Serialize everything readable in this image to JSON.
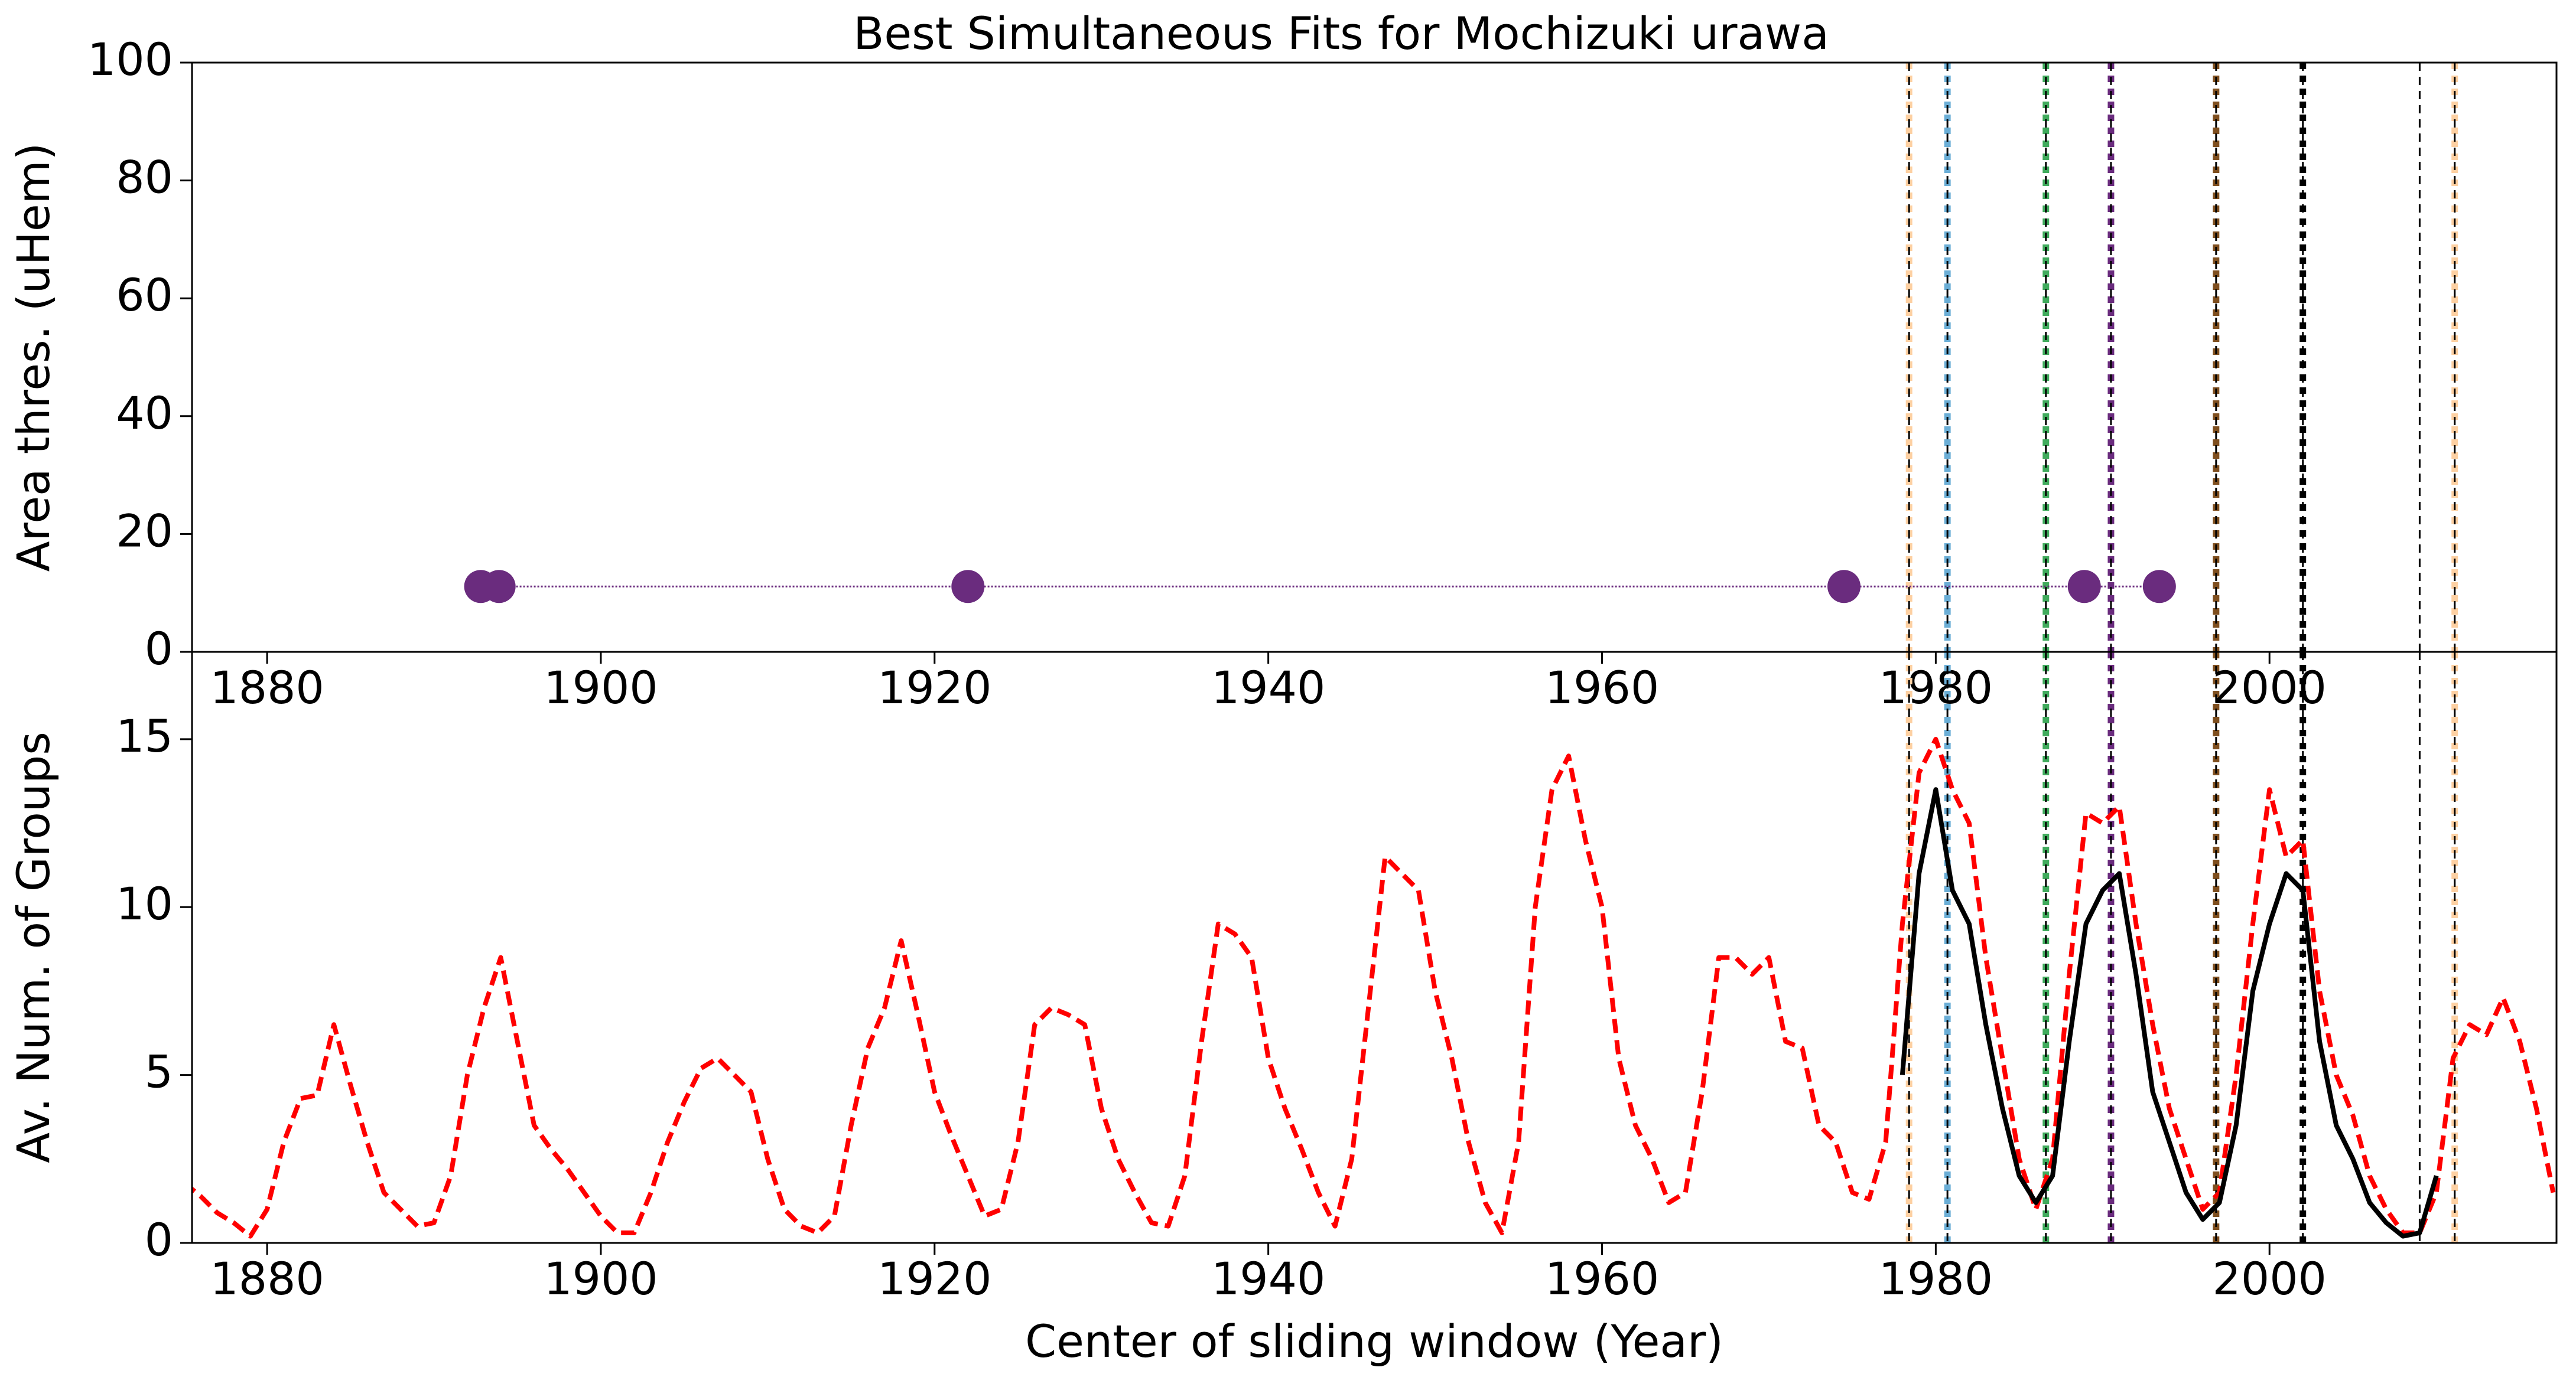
{
  "chart_data": [
    {
      "type": "scatter",
      "title": "Best Simultaneous Fits for Mochizuki urawa",
      "ylabel": "Area thres. (uHem)",
      "x": [
        1892.8,
        1893.9,
        1922.0,
        1974.5,
        1988.9,
        1993.4
      ],
      "values": [
        11.1,
        11.1,
        11.1,
        11.1,
        11.1,
        11.1
      ],
      "color": "#6a2c7e",
      "xlim": [
        1875.5,
        2017.2
      ],
      "ylim": [
        0,
        100
      ],
      "xticks": [
        1880,
        1900,
        1920,
        1940,
        1960,
        1980,
        2000
      ],
      "yticks": [
        0,
        20,
        40,
        60,
        80,
        100
      ],
      "vlines": [
        {
          "x": 1978.4,
          "color": "#fdd0a2"
        },
        {
          "x": 1980.7,
          "color": "#6baed6"
        },
        {
          "x": 1986.6,
          "color": "#41ab5d"
        },
        {
          "x": 1990.5,
          "color": "#6a2c7e"
        },
        {
          "x": 1996.8,
          "color": "#7f4f1f"
        },
        {
          "x": 2002.0,
          "color": "#000000"
        },
        {
          "x": 2009.0,
          "color": "#ffffff"
        },
        {
          "x": 2011.1,
          "color": "#fdd0a2"
        }
      ]
    },
    {
      "type": "line",
      "xlabel": "Center of sliding window (Year)",
      "ylabel": "Av. Num. of Groups",
      "xlim": [
        1875.5,
        2017.2
      ],
      "ylim": [
        0,
        17.6
      ],
      "xticks": [
        1880,
        1900,
        1920,
        1940,
        1960,
        1980,
        2000
      ],
      "yticks": [
        0,
        5,
        10,
        15
      ],
      "series": [
        {
          "color": "#ff0000",
          "dash": true,
          "x": [
            1875,
            1876,
            1877,
            1878,
            1879,
            1880,
            1881,
            1882,
            1883,
            1884,
            1885,
            1886,
            1887,
            1888,
            1889,
            1890,
            1891,
            1892,
            1893,
            1894,
            1895,
            1896,
            1897,
            1898,
            1899,
            1900,
            1901,
            1902,
            1903,
            1904,
            1905,
            1906,
            1907,
            1908,
            1909,
            1910,
            1911,
            1912,
            1913,
            1914,
            1915,
            1916,
            1917,
            1918,
            1919,
            1920,
            1921,
            1922,
            1923,
            1924,
            1925,
            1926,
            1927,
            1928,
            1929,
            1930,
            1931,
            1932,
            1933,
            1934,
            1935,
            1936,
            1937,
            1938,
            1939,
            1940,
            1941,
            1942,
            1943,
            1944,
            1945,
            1946,
            1947,
            1948,
            1949,
            1950,
            1951,
            1952,
            1953,
            1954,
            1955,
            1956,
            1957,
            1958,
            1959,
            1960,
            1961,
            1962,
            1963,
            1964,
            1965,
            1966,
            1967,
            1968,
            1969,
            1970,
            1971,
            1972,
            1973,
            1974,
            1975,
            1976,
            1977,
            1978,
            1979,
            1980,
            1981,
            1982,
            1983,
            1984,
            1985,
            1986,
            1987,
            1988,
            1989,
            1990,
            1991,
            1992,
            1993,
            1994,
            1995,
            1996,
            1997,
            1998,
            1999,
            2000,
            2001,
            2002,
            2003,
            2004,
            2005,
            2006,
            2007,
            2008,
            2009,
            2010,
            2011,
            2012,
            2013,
            2014,
            2015,
            2016,
            2017
          ],
          "values": [
            1.8,
            1.4,
            0.9,
            0.6,
            0.2,
            1.0,
            3.0,
            4.3,
            4.4,
            6.5,
            4.7,
            3.0,
            1.5,
            1.0,
            0.5,
            0.6,
            2.0,
            5.0,
            7.0,
            8.5,
            6.0,
            3.5,
            2.8,
            2.2,
            1.5,
            0.8,
            0.3,
            0.3,
            1.5,
            3.0,
            4.2,
            5.2,
            5.5,
            5.0,
            4.5,
            2.5,
            1.0,
            0.5,
            0.3,
            0.8,
            3.5,
            5.8,
            7.0,
            9.0,
            6.8,
            4.5,
            3.2,
            2.0,
            0.8,
            1.0,
            3.0,
            6.5,
            7.0,
            6.8,
            6.5,
            4.0,
            2.5,
            1.5,
            0.6,
            0.5,
            2.0,
            6.0,
            9.5,
            9.2,
            8.5,
            5.5,
            4.0,
            2.8,
            1.5,
            0.5,
            2.5,
            7.0,
            11.5,
            11.0,
            10.5,
            7.5,
            5.5,
            3.0,
            1.2,
            0.3,
            3.0,
            10.0,
            13.5,
            14.5,
            12.0,
            10.0,
            5.5,
            3.5,
            2.5,
            1.2,
            1.5,
            4.5,
            8.5,
            8.5,
            8.0,
            8.5,
            6.0,
            5.8,
            3.5,
            3.0,
            1.5,
            1.3,
            3.0,
            9.5,
            14.0,
            15.0,
            13.5,
            12.5,
            8.5,
            5.5,
            2.5,
            1.0,
            2.5,
            8.0,
            12.8,
            12.5,
            13.0,
            9.5,
            6.5,
            4.0,
            2.5,
            1.0,
            1.5,
            5.0,
            9.5,
            13.5,
            11.5,
            12.0,
            7.5,
            5.0,
            3.8,
            2.0,
            1.0,
            0.3,
            0.3,
            1.5,
            5.5,
            6.5,
            6.2,
            7.3,
            6.0,
            4.0,
            1.5
          ]
        },
        {
          "color": "#000000",
          "dash": false,
          "x": [
            1978,
            1979,
            1980,
            1981,
            1982,
            1983,
            1984,
            1985,
            1986,
            1987,
            1988,
            1989,
            1990,
            1991,
            1992,
            1993,
            1994,
            1995,
            1996,
            1997,
            1998,
            1999,
            2000,
            2001,
            2002,
            2003,
            2004,
            2005,
            2006,
            2007,
            2008,
            2009,
            2010
          ],
          "values": [
            5,
            11,
            13.5,
            10.5,
            9.5,
            6.5,
            4,
            2,
            1.2,
            2,
            6,
            9.5,
            10.5,
            11,
            8,
            4.5,
            3,
            1.5,
            0.7,
            1.2,
            3.5,
            7.5,
            9.5,
            11,
            10.5,
            6,
            3.5,
            2.5,
            1.2,
            0.6,
            0.2,
            0.3,
            2
          ]
        }
      ],
      "vlines": [
        {
          "x": 1978.4,
          "color": "#fdd0a2"
        },
        {
          "x": 1980.7,
          "color": "#6baed6"
        },
        {
          "x": 1986.6,
          "color": "#41ab5d"
        },
        {
          "x": 1990.5,
          "color": "#6a2c7e"
        },
        {
          "x": 1996.8,
          "color": "#7f4f1f"
        },
        {
          "x": 2002.0,
          "color": "#000000"
        },
        {
          "x": 2009.0,
          "color": "#ffffff"
        },
        {
          "x": 2011.1,
          "color": "#fdd0a2"
        }
      ]
    }
  ]
}
